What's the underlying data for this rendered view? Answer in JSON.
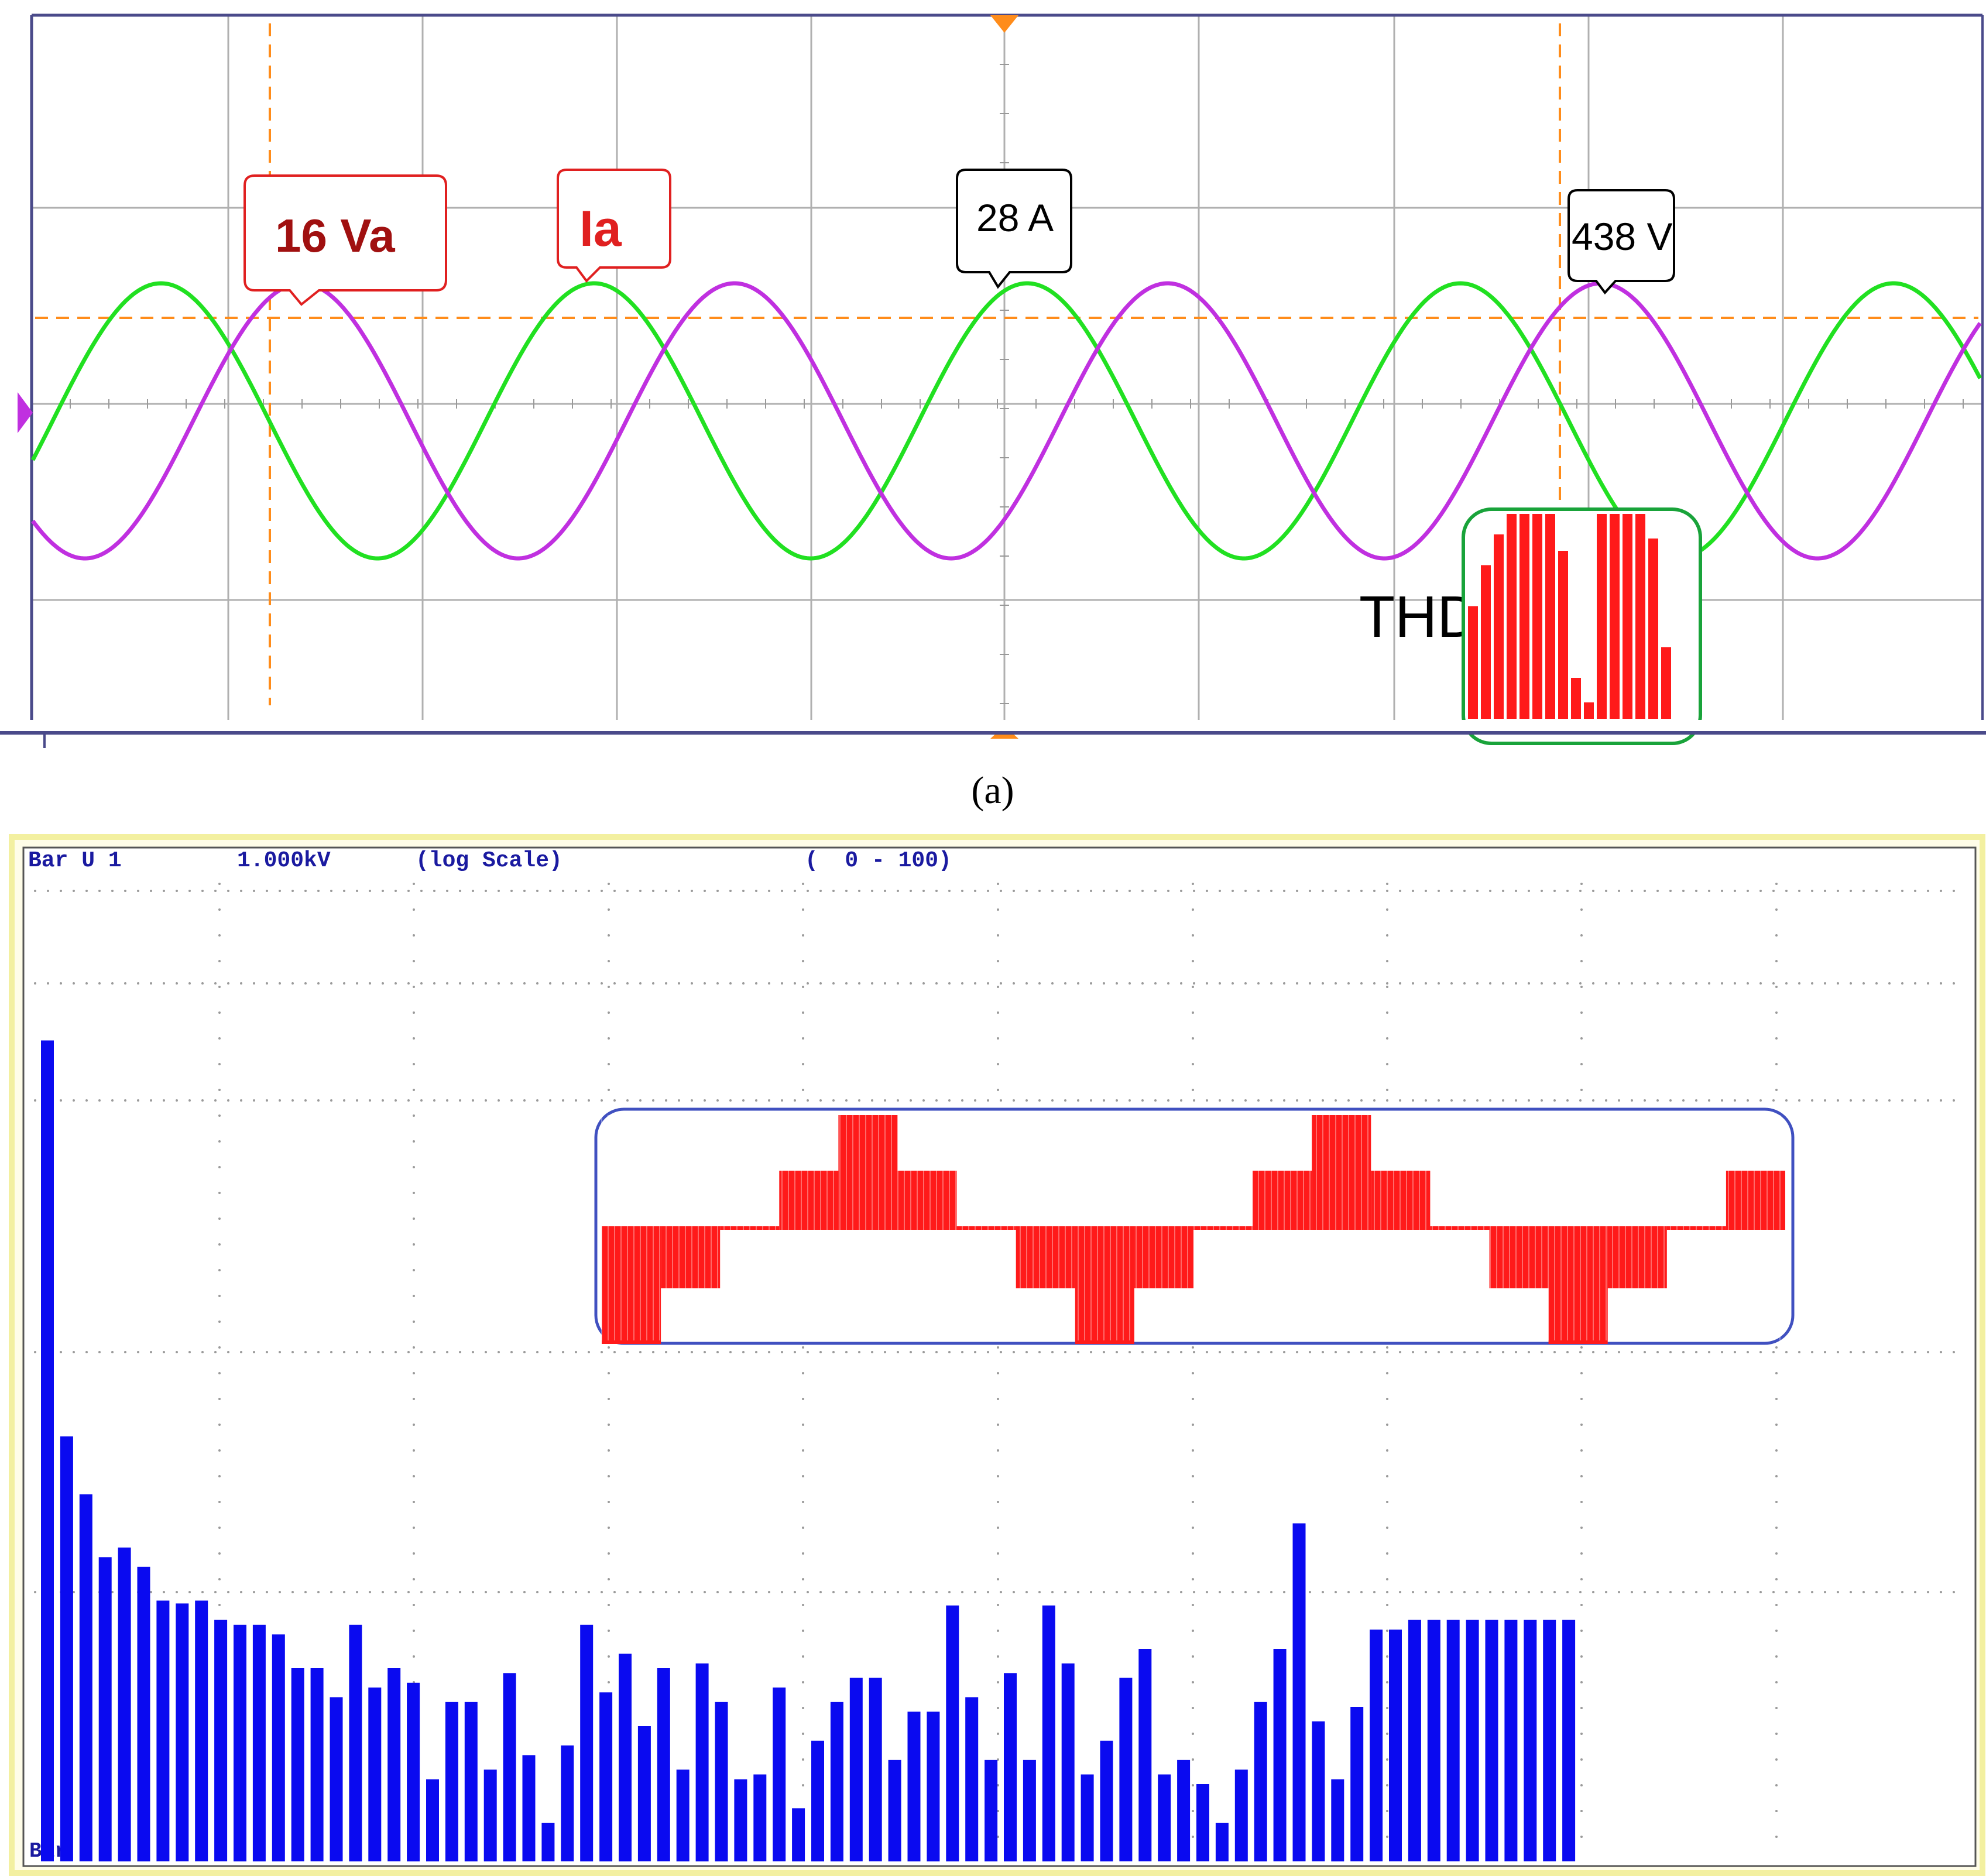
{
  "panel_a": {
    "caption": "(a)",
    "callouts": {
      "va": "16 Va",
      "ia": "Ia",
      "current": "28 A",
      "voltage": "438 V"
    },
    "thd_label": "THD",
    "thd_bars": [
      0.55,
      0.75,
      0.9,
      1.0,
      1.0,
      1.0,
      1.0,
      0.82,
      0.2,
      0.08,
      1.0,
      1.0,
      1.0,
      1.0,
      0.88,
      0.35
    ],
    "colors": {
      "green": "#21e021",
      "purple": "#c030e0",
      "orange": "#ff8c1a",
      "red": "#ff1a1a",
      "callout_red": "#e02020",
      "thd_box": "#19a33a"
    }
  },
  "panel_b": {
    "header": {
      "channel": "Bar U 1",
      "scale_value": "1.000kV",
      "scale_type": "(log Scale)",
      "range": "(  0 - 100)"
    },
    "bottom_left_text": "Bar",
    "colors": {
      "bars": "#0a0af0",
      "text": "#1a1aa0",
      "frame": "#f3f0a0",
      "inset_box": "#4050c0",
      "inverter": "#ff1a1a"
    }
  },
  "chart_data": [
    {
      "type": "line",
      "series": [
        {
          "name": "Ia",
          "phase_cycles": 4.5,
          "relative_amplitude": 0.7
        },
        {
          "name": "16 Va",
          "phase_cycles": 4.5,
          "relative_amplitude": 0.7
        }
      ],
      "annotations": [
        "16 Va",
        "Ia",
        "28 A",
        "438 V",
        "THD"
      ]
    },
    {
      "type": "bar",
      "title": "Bar U 1  1.000kV (log Scale) ( 0 - 100)",
      "x_range": [
        0,
        100
      ],
      "yscale": "log",
      "bar_heights_fraction": [
        0.85,
        0.44,
        0.38,
        0.315,
        0.325,
        0.305,
        0.27,
        0.267,
        0.27,
        0.25,
        0.245,
        0.245,
        0.235,
        0.2,
        0.2,
        0.17,
        0.245,
        0.18,
        0.2,
        0.185,
        0.085,
        0.165,
        0.165,
        0.095,
        0.195,
        0.11,
        0.04,
        0.12,
        0.245,
        0.175,
        0.215,
        0.14,
        0.2,
        0.095,
        0.205,
        0.165,
        0.085,
        0.09,
        0.18,
        0.055,
        0.125,
        0.165,
        0.19,
        0.19,
        0.105,
        0.155,
        0.155,
        0.265,
        0.17,
        0.105,
        0.195,
        0.105,
        0.265,
        0.205,
        0.09,
        0.125,
        0.19,
        0.22,
        0.09,
        0.105,
        0.08,
        0.04,
        0.095,
        0.165,
        0.22,
        0.35,
        0.145,
        0.085,
        0.16,
        0.24,
        0.24,
        0.25,
        0.25,
        0.25,
        0.25,
        0.25,
        0.25,
        0.25,
        0.25,
        0.25
      ]
    }
  ]
}
